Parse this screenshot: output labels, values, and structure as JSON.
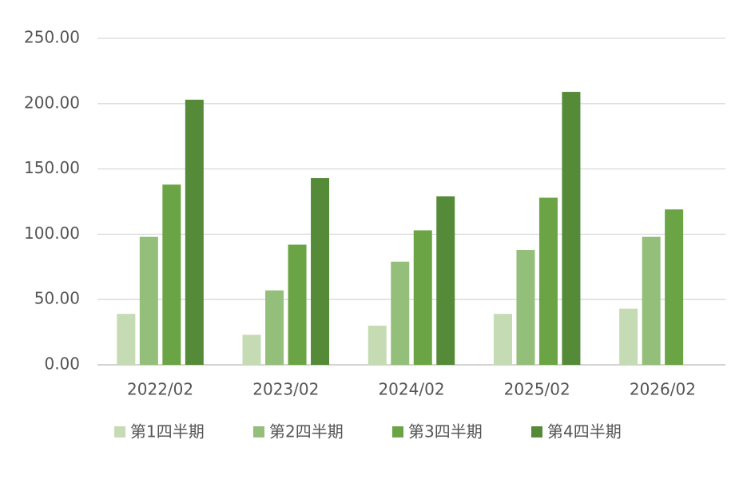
{
  "chart_data": {
    "type": "bar",
    "categories": [
      "2022/02",
      "2023/02",
      "2024/02",
      "2025/02",
      "2026/02"
    ],
    "series": [
      {
        "name": "第1四半期",
        "color": "#c5dbb3",
        "values": [
          39,
          23,
          30,
          39,
          43
        ]
      },
      {
        "name": "第2四半期",
        "color": "#93bf7a",
        "values": [
          98,
          57,
          79,
          88,
          98
        ]
      },
      {
        "name": "第3四半期",
        "color": "#6aa444",
        "values": [
          138,
          92,
          103,
          128,
          119
        ]
      },
      {
        "name": "第4四半期",
        "color": "#548a38",
        "values": [
          203,
          143,
          129,
          209,
          null
        ]
      }
    ],
    "ylim": [
      0,
      250
    ],
    "yticks": [
      {
        "value": 0,
        "label": "0.00"
      },
      {
        "value": 50,
        "label": "50.00"
      },
      {
        "value": 100,
        "label": "100.00"
      },
      {
        "value": 150,
        "label": "150.00"
      },
      {
        "value": 200,
        "label": "200.00"
      },
      {
        "value": 250,
        "label": "250.00"
      }
    ],
    "grid": true,
    "legend": "bottom"
  }
}
